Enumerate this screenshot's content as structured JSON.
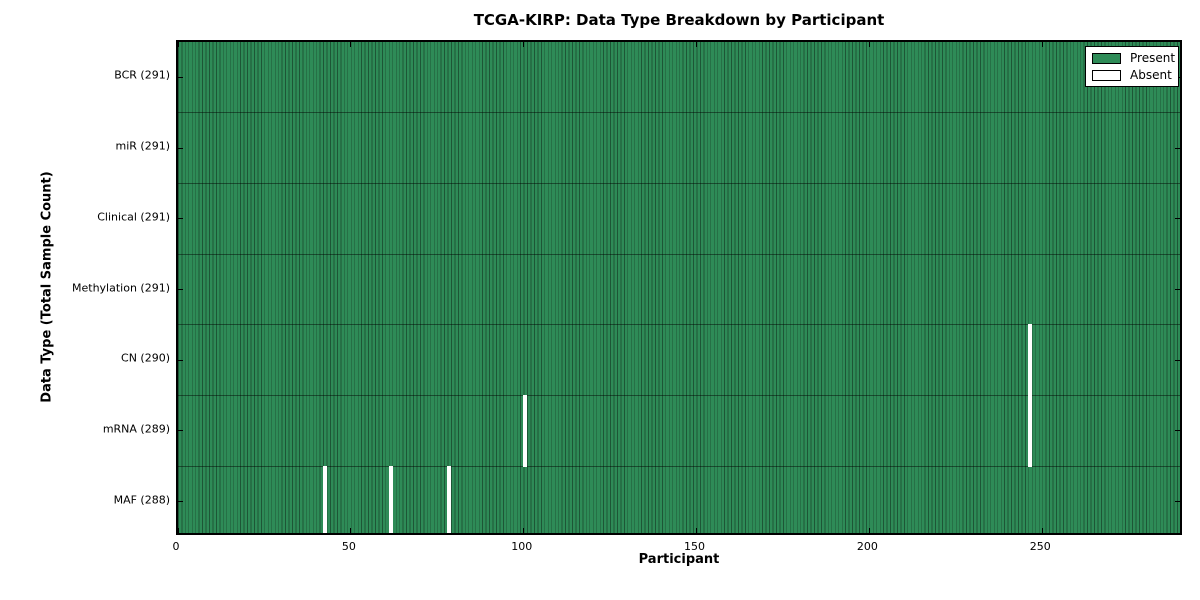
{
  "title": "TCGA-KIRP: Data Type Breakdown by Participant",
  "x_axis_label": "Participant",
  "y_axis_label": "Data Type (Total Sample Count)",
  "legend": {
    "items": [
      {
        "label": "Present",
        "color": "#2e8b57"
      },
      {
        "label": "Absent",
        "color": "#ffffff"
      }
    ]
  },
  "colors": {
    "present_fill": "#2e8b57",
    "cell_edge": "rgba(0,0,0,0.38)",
    "row_boundary": "rgba(0,0,0,0.45)",
    "absent_fill": "#ffffff",
    "frame": "#000000"
  },
  "chart_data": {
    "type": "heatmap",
    "title": "TCGA-KIRP: Data Type Breakdown by Participant",
    "xlabel": "Participant",
    "ylabel": "Data Type (Total Sample Count)",
    "n_participants": 291,
    "xlim": [
      0,
      291
    ],
    "x_ticks": [
      0,
      50,
      100,
      150,
      200,
      250
    ],
    "legend_position": "upper right",
    "legend_entries": [
      "Present",
      "Absent"
    ],
    "rows": [
      {
        "label": "BCR (291)",
        "data_type": "BCR",
        "present_count": 291,
        "absent_participants": []
      },
      {
        "label": "miR (291)",
        "data_type": "miR",
        "present_count": 291,
        "absent_participants": []
      },
      {
        "label": "Clinical (291)",
        "data_type": "Clinical",
        "present_count": 291,
        "absent_participants": []
      },
      {
        "label": "Methylation (291)",
        "data_type": "Methylation",
        "present_count": 291,
        "absent_participants": []
      },
      {
        "label": "CN (290)",
        "data_type": "CN",
        "present_count": 290,
        "absent_participants": [
          246
        ]
      },
      {
        "label": "mRNA (289)",
        "data_type": "mRNA",
        "present_count": 289,
        "absent_participants": [
          100,
          246
        ]
      },
      {
        "label": "MAF (288)",
        "data_type": "MAF",
        "present_count": 288,
        "absent_participants": [
          42,
          61,
          78
        ]
      }
    ]
  }
}
